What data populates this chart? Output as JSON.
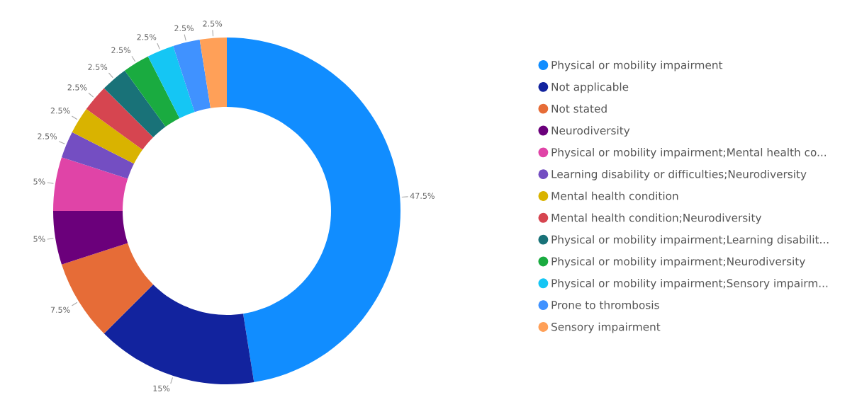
{
  "chart_data": {
    "type": "donut",
    "categories": [
      "Physical or mobility impairment",
      "Not applicable",
      "Not stated",
      "Neurodiversity",
      "Physical or mobility impairment;Mental health co...",
      "Learning disability or difficulties;Neurodiversity",
      "Mental health condition",
      "Mental health condition;Neurodiversity",
      "Physical or mobility impairment;Learning disabilit...",
      "Physical or mobility impairment;Neurodiversity",
      "Physical or mobility impairment;Sensory impairm...",
      "Prone to thrombosis",
      "Sensory impairment"
    ],
    "values": [
      47.5,
      15,
      7.5,
      5,
      5,
      2.5,
      2.5,
      2.5,
      2.5,
      2.5,
      2.5,
      2.5,
      2.5
    ],
    "colors": [
      "#118dff",
      "#12239e",
      "#e66c37",
      "#6b007b",
      "#e044a7",
      "#744ec2",
      "#d9b300",
      "#d64550",
      "#197278",
      "#1aab40",
      "#15c6f4",
      "#4092ff",
      "#ffa058"
    ],
    "value_labels": [
      "47.5%",
      "15%",
      "7.5%",
      "5%",
      "5%",
      "2.5%",
      "2.5%",
      "2.5%",
      "2.5%",
      "2.5%",
      "2.5%",
      "2.5%",
      "2.5%"
    ],
    "legend": "right"
  }
}
